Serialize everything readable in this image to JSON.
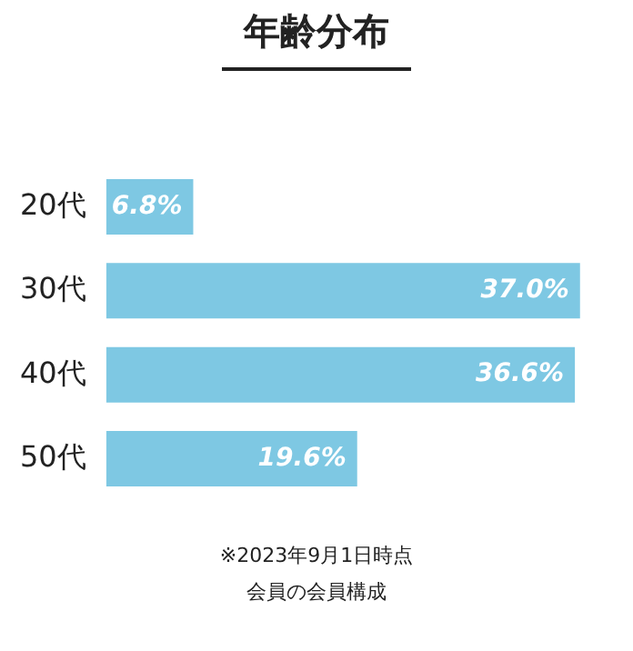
{
  "chart_data": {
    "type": "bar",
    "orientation": "horizontal",
    "title": "年齢分布",
    "categories": [
      "20代",
      "30代",
      "40代",
      "50代"
    ],
    "values": [
      6.8,
      37.0,
      36.6,
      19.6
    ],
    "value_labels": [
      "6.8%",
      "37.0%",
      "36.6%",
      "19.6%"
    ],
    "color": "#7ec8e3",
    "grid": false,
    "legend": false,
    "tick_labels": "y",
    "annotations": [
      "※2023年9月1日時点",
      "会員の会員構成"
    ]
  }
}
